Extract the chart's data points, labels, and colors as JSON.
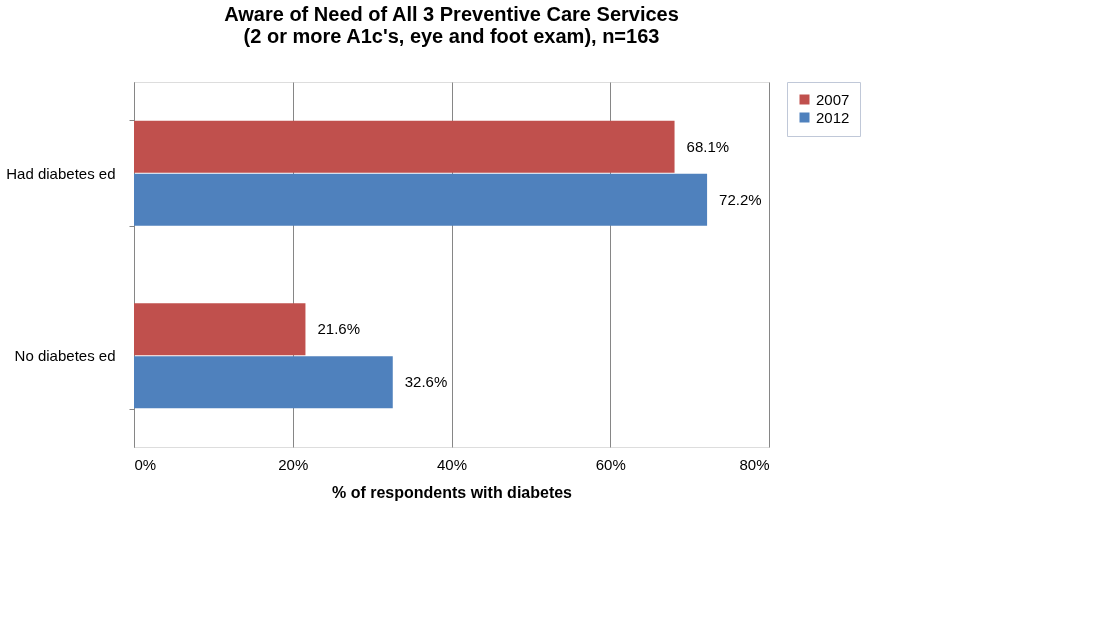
{
  "chart_data": {
    "type": "bar",
    "orientation": "horizontal",
    "title": "Aware of Need of All 3 Preventive Care Services\n(2 or more A1c's, eye and foot  exam), n=163",
    "xlabel": "% of respondents with diabetes",
    "categories": [
      "Had diabetes ed",
      "No diabetes ed"
    ],
    "series": [
      {
        "name": "2007",
        "color": "#c0504d",
        "values": [
          68.1,
          21.6
        ],
        "value_labels": [
          "68.1%",
          "21.6%"
        ]
      },
      {
        "name": "2012",
        "color": "#4f81bd",
        "values": [
          72.2,
          32.6
        ],
        "value_labels": [
          "72.2%",
          "32.6%"
        ]
      }
    ],
    "xlim": [
      0,
      80
    ],
    "xticks": [
      {
        "value": 0,
        "label": "0%"
      },
      {
        "value": 20,
        "label": "20%"
      },
      {
        "value": 40,
        "label": "40%"
      },
      {
        "value": 60,
        "label": "60%"
      },
      {
        "value": 80,
        "label": "80%"
      }
    ],
    "grid": "x",
    "legend": "right"
  }
}
